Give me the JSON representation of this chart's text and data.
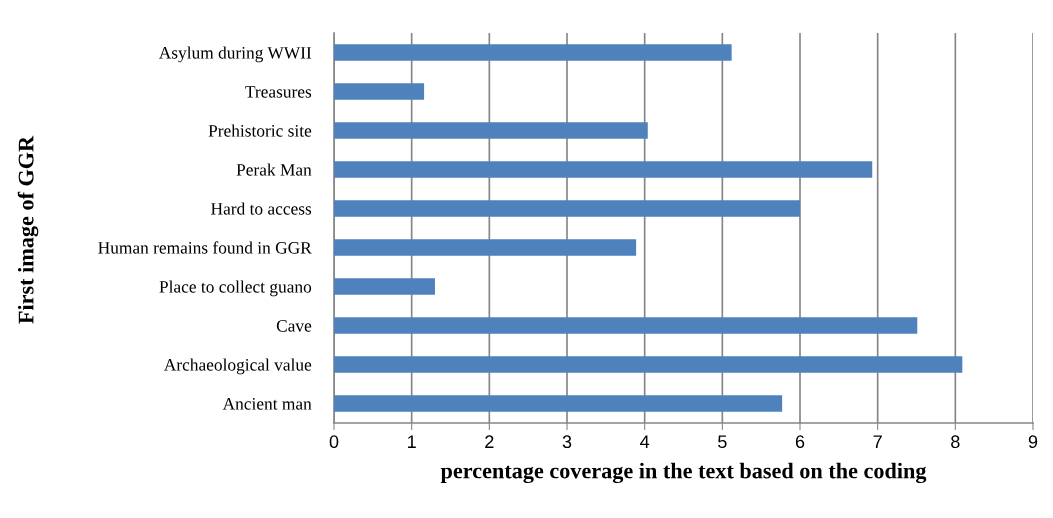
{
  "chart_data": {
    "type": "bar",
    "orientation": "horizontal",
    "xlabel": "percentage coverage in the text based on the coding",
    "ylabel": "First image of GGR",
    "categories": [
      "Asylum during WWII",
      "Treasures",
      "Prehistoric site",
      "Perak Man",
      "Hard to access",
      "Human remains found in GGR",
      "Place to collect guano",
      "Cave",
      "Archaeological value",
      "Ancient man"
    ],
    "values": [
      5.12,
      1.16,
      4.04,
      6.93,
      6.0,
      3.89,
      1.3,
      7.51,
      8.09,
      5.77
    ],
    "color": "#4f81bd",
    "xlim": [
      0,
      9
    ],
    "xticks": [
      0,
      1,
      2,
      3,
      4,
      5,
      6,
      7,
      8,
      9
    ],
    "grid": "x"
  }
}
